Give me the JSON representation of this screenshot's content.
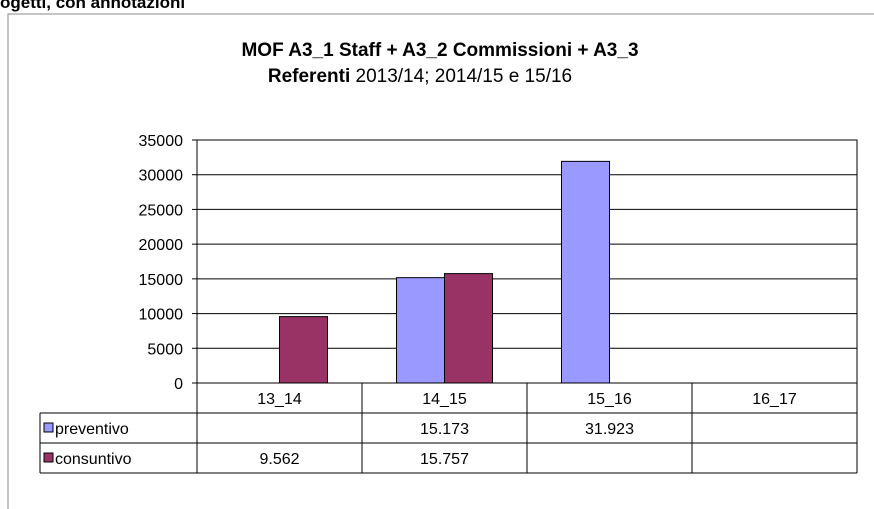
{
  "header_text": "ogetti, con annotazioni",
  "chart_data": {
    "type": "bar",
    "title": [
      "MOF A3_1 Staff  + A3_2 Commissioni + A3_3",
      "Referenti",
      "2013/14;  2014/15 e 15/16"
    ],
    "categories": [
      "13_14",
      "14_15",
      "15_16",
      "16_17"
    ],
    "series": [
      {
        "name": "preventivo",
        "color": "#9999ff",
        "values": [
          null,
          15173,
          31923,
          null
        ],
        "value_labels": [
          null,
          "15.173",
          "31.923",
          null
        ]
      },
      {
        "name": "consuntivo",
        "color": "#993366",
        "values": [
          9562,
          15757,
          null,
          null
        ],
        "value_labels": [
          "9.562",
          "15.757",
          null,
          null
        ]
      }
    ],
    "ylim": [
      0,
      35000
    ],
    "yticks": [
      0,
      5000,
      10000,
      15000,
      20000,
      25000,
      30000,
      35000
    ],
    "grid": true
  }
}
